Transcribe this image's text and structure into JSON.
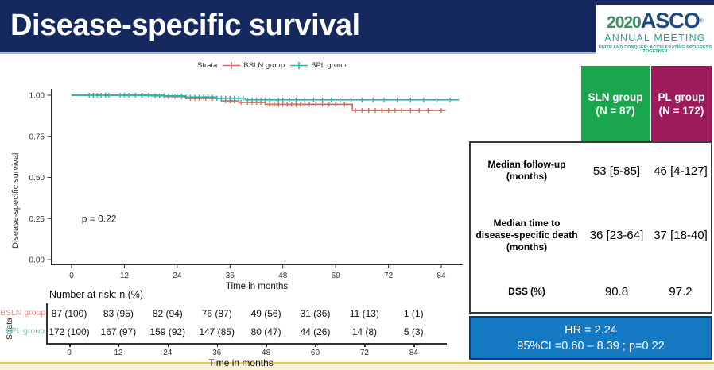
{
  "header": {
    "title": "Disease-specific survival"
  },
  "logo": {
    "year": "2020",
    "org": "ASCO",
    "reg": "®",
    "line2": "ANNUAL MEETING",
    "tagline": "UNITE AND CONQUER: ACCELERATING PROGRESS TOGETHER"
  },
  "colors": {
    "header_bg": "#16295e",
    "red": "#e0685e",
    "red_light": "#f0948b",
    "teal": "#2fb3ad",
    "teal_light": "#6ccac5",
    "green_header": "#1aa64c",
    "magenta_header": "#9d1a5b",
    "blue_box": "#1478c2",
    "bottom_line": "#e5cf52",
    "bottom_band": "#f8f2d8"
  },
  "chart_data": {
    "type": "line",
    "subtype": "kaplan-meier-step",
    "xlabel": "Time in months",
    "ylabel": "Disease-specific survival",
    "xlim": [
      0,
      88
    ],
    "ylim": [
      0,
      1
    ],
    "xticks": [
      0,
      12,
      24,
      36,
      48,
      60,
      72,
      84
    ],
    "yticks": [
      0.0,
      0.25,
      0.5,
      0.75,
      1.0
    ],
    "ytick_labels": [
      "0.00",
      "0.25",
      "0.50",
      "0.75",
      "1.00"
    ],
    "grid": "off",
    "legend": {
      "title": "Strata",
      "position": "top",
      "entries": [
        {
          "label": "BSLN group",
          "color": "#e0685e"
        },
        {
          "label": "BPL group",
          "color": "#2fb3ad"
        }
      ]
    },
    "annotation": {
      "text": "p = 0.22",
      "x": 2.3,
      "y": 0.25
    },
    "series": [
      {
        "name": "BSLN group",
        "color": "#e0685e",
        "steps": [
          [
            0,
            1.0
          ],
          [
            21,
            0.992
          ],
          [
            26,
            0.981
          ],
          [
            34,
            0.966
          ],
          [
            38,
            0.957
          ],
          [
            44,
            0.945
          ],
          [
            63.8,
            0.908
          ],
          [
            85,
            0.908
          ]
        ],
        "censors": [
          16,
          22,
          23.5,
          25,
          27,
          28,
          29,
          30.5,
          32,
          33,
          35,
          36,
          37,
          38.5,
          40,
          41,
          42,
          43,
          45,
          46,
          47,
          48,
          49,
          50,
          51,
          52,
          53,
          54,
          55.5,
          57,
          58.5,
          60,
          62,
          64.5,
          66,
          67.5,
          69,
          70.5,
          72,
          73.5,
          75,
          77,
          79,
          81,
          84
        ]
      },
      {
        "name": "BPL group",
        "color": "#2fb3ad",
        "steps": [
          [
            0,
            1.0
          ],
          [
            18,
            0.996
          ],
          [
            26,
            0.989
          ],
          [
            33,
            0.982
          ],
          [
            39.5,
            0.972
          ],
          [
            88,
            0.972
          ]
        ],
        "censors": [
          4,
          5,
          5.8,
          6.7,
          7.7,
          8.5,
          11,
          12,
          13,
          14.5,
          16,
          17.5,
          19,
          20,
          21,
          22,
          23,
          24,
          25,
          26,
          27,
          28,
          29,
          30,
          31,
          32,
          33,
          34,
          35,
          36,
          37,
          38,
          39,
          40,
          41,
          42,
          43,
          44,
          45,
          46,
          47,
          48,
          49.5,
          51,
          53,
          55,
          57,
          59,
          61,
          63.5,
          66,
          68.5,
          71,
          74,
          77,
          80,
          83,
          86
        ]
      }
    ]
  },
  "risk_table": {
    "title": "Number at risk: n (%)",
    "axis_label": "Strata",
    "xlabel": "Time in months",
    "times": [
      0,
      12,
      24,
      36,
      48,
      60,
      72,
      84
    ],
    "rows": [
      {
        "label": "BSLN group",
        "color": "#f0948b",
        "values": [
          "87 (100)",
          "83 (95)",
          "82 (94)",
          "76 (87)",
          "49 (56)",
          "31 (36)",
          "11 (13)",
          "1 (1)"
        ]
      },
      {
        "label": "BPL group",
        "color": "#6ccac5",
        "values": [
          "172 (100)",
          "167 (97)",
          "159 (92)",
          "147 (85)",
          "80 (47)",
          "44 (26)",
          "14 (8)",
          "5 (3)"
        ]
      }
    ]
  },
  "summary_table": {
    "col_headers": [
      {
        "line1": "SLN group",
        "line2": "(N = 87)",
        "bg": "#1aa64c"
      },
      {
        "line1": "PL group",
        "line2": "(N = 172)",
        "bg": "#9d1a5b"
      }
    ],
    "rows": [
      {
        "label_lines": [
          "Median follow-up",
          "(months)"
        ],
        "values": [
          "53 [5-85]",
          "46 [4-127]"
        ]
      },
      {
        "label_lines": [
          "Median time to",
          "disease-specific death",
          "(months)"
        ],
        "values": [
          "36 [23-64]",
          "37 [18-40]"
        ]
      },
      {
        "label_lines": [
          "DSS (%)"
        ],
        "values": [
          "90.8",
          "97.2"
        ]
      }
    ],
    "footer": {
      "line1": "HR = 2.24",
      "line2": "95%CI =0.60 – 8.39 ; p=0.22"
    }
  }
}
